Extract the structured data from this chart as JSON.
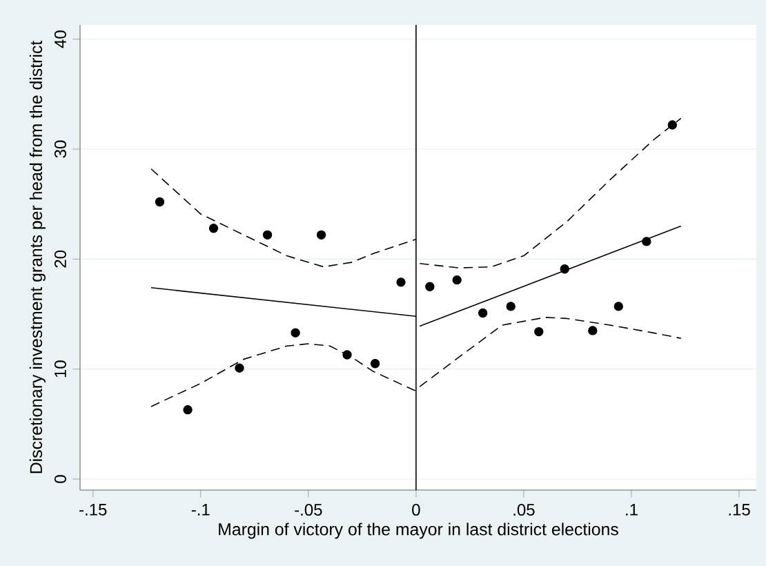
{
  "chart_data": {
    "type": "scatter",
    "xlabel": "Margin of victory of the mayor in last district elections",
    "ylabel": "Discretionary investment grants per head from the district",
    "xlim": [
      -0.156,
      0.158
    ],
    "ylim": [
      -1,
      41.3
    ],
    "xticks": [
      {
        "value": -0.15,
        "label": "-.15"
      },
      {
        "value": -0.1,
        "label": "-.1"
      },
      {
        "value": -0.05,
        "label": "-.05"
      },
      {
        "value": 0,
        "label": "0"
      },
      {
        "value": 0.05,
        "label": ".05"
      },
      {
        "value": 0.1,
        "label": ".1"
      },
      {
        "value": 0.15,
        "label": ".15"
      }
    ],
    "yticks": [
      0,
      10,
      20,
      30,
      40
    ],
    "grid": "y",
    "ref_lines": [
      {
        "axis": "x",
        "value": 0,
        "color": "#000000"
      }
    ],
    "series": [
      {
        "color": "#000000",
        "marker": "circle",
        "x": [
          -0.119,
          -0.106,
          -0.094,
          -0.082,
          -0.069,
          -0.056,
          -0.044,
          -0.032,
          -0.019,
          -0.007,
          0.0064,
          0.019,
          0.031,
          0.044,
          0.057,
          0.069,
          0.082,
          0.094,
          0.107,
          0.119
        ],
        "values": [
          25.2,
          6.3,
          22.8,
          10.1,
          22.2,
          13.3,
          22.2,
          11.3,
          10.5,
          17.9,
          17.5,
          18.1,
          15.1,
          15.7,
          13.4,
          19.1,
          13.5,
          15.7,
          21.6,
          32.2
        ]
      },
      {
        "type": "line",
        "color": "#000000",
        "line_style": "solid",
        "x": [
          -0.123,
          0
        ],
        "values": [
          17.4,
          14.8
        ]
      },
      {
        "type": "line",
        "color": "#000000",
        "line_style": "solid",
        "x": [
          0.0017,
          0.123
        ],
        "values": [
          13.9,
          23.0
        ]
      },
      {
        "type": "line",
        "color": "#000000",
        "line_style": "dashed",
        "x": [
          -0.123,
          -0.1,
          -0.08,
          -0.06,
          -0.043,
          -0.03,
          -0.02,
          0
        ],
        "values": [
          28.2,
          24.1,
          22.2,
          20.3,
          19.3,
          19.7,
          20.5,
          21.8
        ]
      },
      {
        "type": "line",
        "color": "#000000",
        "line_style": "dashed",
        "x": [
          -0.123,
          -0.1,
          -0.08,
          -0.06,
          -0.05,
          -0.04,
          -0.03,
          -0.02,
          0
        ],
        "values": [
          6.6,
          8.7,
          10.9,
          12.1,
          12.3,
          12.1,
          11.1,
          9.8,
          8.0
        ]
      },
      {
        "type": "line",
        "color": "#000000",
        "line_style": "dashed",
        "x": [
          0.0017,
          0.02,
          0.035,
          0.05,
          0.07,
          0.09,
          0.11,
          0.123
        ],
        "values": [
          19.6,
          19.2,
          19.3,
          20.3,
          23.4,
          27.2,
          30.8,
          32.8
        ]
      },
      {
        "type": "line",
        "color": "#000000",
        "line_style": "dashed",
        "x": [
          0.0017,
          0.02,
          0.04,
          0.06,
          0.07,
          0.09,
          0.11,
          0.123
        ],
        "values": [
          8.4,
          11.1,
          14.0,
          14.7,
          14.6,
          14.0,
          13.3,
          12.8
        ]
      }
    ]
  }
}
